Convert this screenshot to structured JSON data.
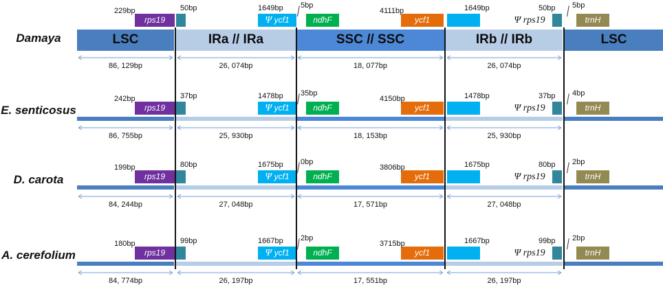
{
  "rows": [
    {
      "species": "Damaya",
      "regions": [
        "LSC",
        "IRa // IRa",
        "SSC // SSC",
        "IRb // IRb",
        "LSC"
      ],
      "labels": {
        "rps19_left": "229bp",
        "ira_start": "50bp",
        "psi_ycf1": "1649bp",
        "ndhF": "5bp",
        "ycf1": "4111bp",
        "irb_ycf1": "1649bp",
        "irb_end": "50bp",
        "trnH": "5bp"
      },
      "lengths": {
        "lsc": "86, 129bp",
        "ira": "26, 074bp",
        "ssc": "18, 077bp",
        "irb": "26, 074bp"
      }
    },
    {
      "species": "E. senticosus",
      "regions": [],
      "labels": {
        "rps19_left": "242bp",
        "ira_start": "37bp",
        "psi_ycf1": "1478bp",
        "ndhF": "35bp",
        "ycf1": "4150bp",
        "irb_ycf1": "1478bp",
        "irb_end": "37bp",
        "trnH": "4bp"
      },
      "lengths": {
        "lsc": "86, 755bp",
        "ira": "25, 930bp",
        "ssc": "18, 153bp",
        "irb": "25, 930bp"
      }
    },
    {
      "species": "D. carota",
      "regions": [],
      "labels": {
        "rps19_left": "199bp",
        "ira_start": "80bp",
        "psi_ycf1": "1675bp",
        "ndhF": "0bp",
        "ycf1": "3806bp",
        "irb_ycf1": "1675bp",
        "irb_end": "80bp",
        "trnH": "2bp"
      },
      "lengths": {
        "lsc": "84, 244bp",
        "ira": "27, 048bp",
        "ssc": "17, 571bp",
        "irb": "27, 048bp"
      }
    },
    {
      "species": "A. cerefolium",
      "regions": [],
      "labels": {
        "rps19_left": "180bp",
        "ira_start": "99bp",
        "psi_ycf1": "1667bp",
        "ndhF": "2bp",
        "ycf1": "3715bp",
        "irb_ycf1": "1667bp",
        "irb_end": "99bp",
        "trnH": "2bp"
      },
      "lengths": {
        "lsc": "84, 774bp",
        "ira": "26, 197bp",
        "ssc": "17, 551bp",
        "irb": "26, 197bp"
      }
    }
  ],
  "genes": {
    "rps19": "rps19",
    "psi": "Ψ",
    "ycf1": "ycf1",
    "ndhF": "ndhF",
    "trnH": "trnH"
  },
  "colors": {
    "lsc": "#4a7fbf",
    "ir": "#b7cde6",
    "ssc": "#4d88d6",
    "rps19": "#7030a0",
    "teal": "#31869b",
    "psi_ycf1": "#00b0f0",
    "ndhF": "#00b050",
    "ycf1": "#e46c0a",
    "trnH": "#938953"
  }
}
